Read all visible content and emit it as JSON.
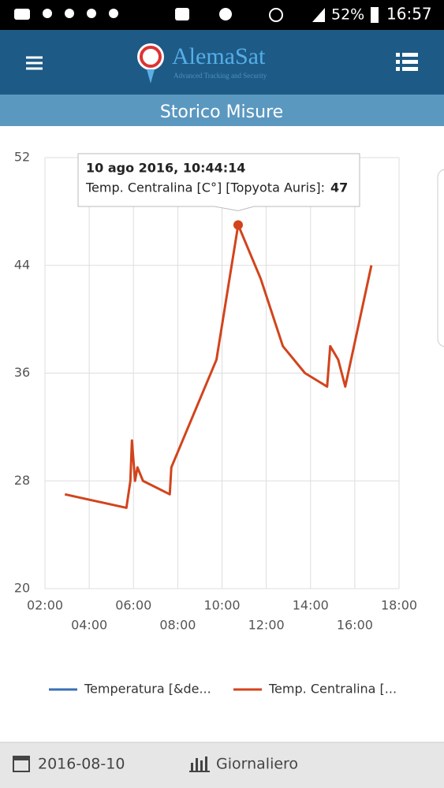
{
  "status_bar": {
    "battery": "52%",
    "time": "16:57"
  },
  "header": {
    "brand": "AlemaSat",
    "tagline": "Advanced Tracking and Security",
    "title": "Storico Misure"
  },
  "chart_data": {
    "type": "line",
    "xlim": [
      2,
      18
    ],
    "xticks": [
      {
        "value": 2,
        "label": "02:00"
      },
      {
        "value": 4,
        "label": "04:00"
      },
      {
        "value": 6,
        "label": "06:00"
      },
      {
        "value": 8,
        "label": "08:00"
      },
      {
        "value": 10,
        "label": "10:00"
      },
      {
        "value": 12,
        "label": "12:00"
      },
      {
        "value": 14,
        "label": "14:00"
      },
      {
        "value": 16,
        "label": "16:00"
      },
      {
        "value": 18,
        "label": "18:00"
      }
    ],
    "ylim": [
      20,
      52
    ],
    "yticks": [
      20,
      28,
      36,
      44,
      52
    ],
    "grid": true,
    "series": [
      {
        "name": "Temperatura [&de...",
        "color": "#3b6fb6",
        "x": [],
        "values": []
      },
      {
        "name": "Temp. Centralina [...",
        "color": "#d2441c",
        "x": [
          2.9,
          5.68,
          5.86,
          5.93,
          6.07,
          6.18,
          6.43,
          7.64,
          7.71,
          9.75,
          10.73,
          11.75,
          12.75,
          13.75,
          14.75,
          14.89,
          15.25,
          15.57,
          16.75
        ],
        "values": [
          27,
          26,
          28,
          31,
          28,
          29,
          28,
          27,
          29,
          37,
          47,
          43,
          38,
          36,
          35,
          38,
          37,
          35,
          44
        ]
      }
    ],
    "tooltip": {
      "date": "10 ago 2016, 10:44:14",
      "label": "Temp. Centralina [C°] [Topyota Auris]:",
      "value": 47
    }
  },
  "footer": {
    "date": "2016-08-10",
    "period": "Giornaliero"
  }
}
